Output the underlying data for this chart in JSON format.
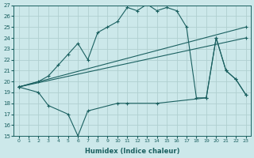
{
  "xlabel": "Humidex (Indice chaleur)",
  "xlim": [
    -0.5,
    23.5
  ],
  "ylim": [
    15,
    27
  ],
  "xticks": [
    0,
    1,
    2,
    3,
    4,
    5,
    6,
    7,
    8,
    9,
    10,
    11,
    12,
    13,
    14,
    15,
    16,
    17,
    18,
    19,
    20,
    21,
    22,
    23
  ],
  "yticks": [
    15,
    16,
    17,
    18,
    19,
    20,
    21,
    22,
    23,
    24,
    25,
    26,
    27
  ],
  "background_color": "#cce8ea",
  "grid_color": "#b0d0d0",
  "line_color": "#1a6060",
  "lines": [
    {
      "x": [
        0,
        2,
        3,
        4,
        5,
        6,
        7,
        8,
        9,
        10,
        11,
        12,
        13,
        14,
        15,
        16,
        17,
        18,
        19,
        20,
        21,
        22,
        23
      ],
      "y": [
        19.5,
        20.0,
        20.5,
        21.5,
        22.5,
        23.5,
        22.0,
        24.5,
        25.0,
        25.5,
        26.8,
        26.5,
        27.1,
        26.5,
        26.8,
        26.5,
        25.0,
        18.5,
        18.5,
        24.0,
        21.0,
        20.2,
        18.8
      ]
    },
    {
      "x": [
        0,
        2,
        3,
        5,
        6,
        7,
        10,
        11,
        14,
        19,
        20,
        21,
        22,
        23
      ],
      "y": [
        19.5,
        19.0,
        17.8,
        17.0,
        15.0,
        17.3,
        18.0,
        18.0,
        18.0,
        18.5,
        24.0,
        21.0,
        20.2,
        18.8
      ]
    },
    {
      "x": [
        0,
        23
      ],
      "y": [
        19.5,
        25.0
      ]
    },
    {
      "x": [
        0,
        23
      ],
      "y": [
        19.5,
        24.0
      ]
    }
  ]
}
